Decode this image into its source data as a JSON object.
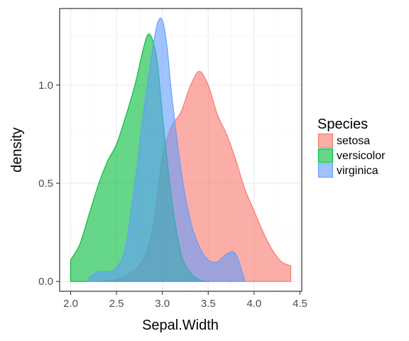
{
  "chart_data": {
    "type": "area",
    "title": "",
    "xlabel": "Sepal.Width",
    "ylabel": "density",
    "xlim": [
      1.88,
      4.52
    ],
    "ylim": [
      -0.05,
      1.39
    ],
    "x_ticks": [
      2.0,
      2.5,
      3.0,
      3.5,
      4.0,
      4.5
    ],
    "x_tick_labels": [
      "2.0",
      "2.5",
      "3.0",
      "3.5",
      "4.0",
      "4.5"
    ],
    "y_ticks": [
      0.0,
      0.5,
      1.0
    ],
    "y_tick_labels": [
      "0.0",
      "0.5",
      "1.0"
    ],
    "grid": true,
    "legend": {
      "title": "Species",
      "placement": "right"
    },
    "series": [
      {
        "name": "setosa",
        "fill": "#F8766D",
        "x": [
          2.3,
          2.4,
          2.5,
          2.6,
          2.7,
          2.8,
          2.9,
          3.0,
          3.1,
          3.2,
          3.3,
          3.4,
          3.5,
          3.6,
          3.7,
          3.8,
          3.9,
          4.0,
          4.1,
          4.2,
          4.3,
          4.4
        ],
        "y": [
          0.0,
          0.003,
          0.01,
          0.03,
          0.06,
          0.12,
          0.28,
          0.63,
          0.79,
          0.86,
          0.99,
          1.07,
          1.0,
          0.85,
          0.75,
          0.62,
          0.47,
          0.36,
          0.25,
          0.16,
          0.1,
          0.08
        ]
      },
      {
        "name": "versicolor",
        "fill": "#00BA38",
        "x": [
          2.0,
          2.1,
          2.2,
          2.3,
          2.4,
          2.5,
          2.6,
          2.7,
          2.8,
          2.85,
          2.9,
          2.95,
          3.0,
          3.1,
          3.2,
          3.3,
          3.4,
          3.5
        ],
        "y": [
          0.11,
          0.19,
          0.34,
          0.49,
          0.61,
          0.7,
          0.84,
          1.0,
          1.2,
          1.26,
          1.22,
          1.1,
          0.85,
          0.43,
          0.15,
          0.05,
          0.01,
          0.0
        ]
      },
      {
        "name": "virginica",
        "fill": "#619CFF",
        "x": [
          2.2,
          2.3,
          2.4,
          2.5,
          2.6,
          2.7,
          2.8,
          2.9,
          2.95,
          3.0,
          3.05,
          3.1,
          3.2,
          3.3,
          3.4,
          3.5,
          3.6,
          3.7,
          3.8,
          3.9
        ],
        "y": [
          0.02,
          0.05,
          0.05,
          0.07,
          0.18,
          0.5,
          0.88,
          1.2,
          1.32,
          1.33,
          1.2,
          0.96,
          0.58,
          0.32,
          0.18,
          0.11,
          0.1,
          0.14,
          0.14,
          0.0
        ]
      }
    ]
  }
}
